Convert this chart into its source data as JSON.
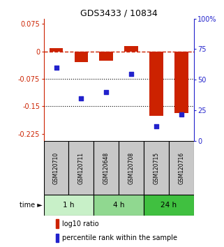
{
  "title": "GDS3433 / 10834",
  "samples": [
    "GSM120710",
    "GSM120711",
    "GSM120648",
    "GSM120708",
    "GSM120715",
    "GSM120716"
  ],
  "log10_ratio": [
    0.01,
    -0.03,
    -0.025,
    0.015,
    -0.175,
    -0.168
  ],
  "percentile_rank": [
    60,
    35,
    40,
    55,
    12,
    22
  ],
  "time_groups": [
    {
      "label": "1 h",
      "start": 0,
      "end": 2,
      "color": "#c8f0c8"
    },
    {
      "label": "4 h",
      "start": 2,
      "end": 4,
      "color": "#90d890"
    },
    {
      "label": "24 h",
      "start": 4,
      "end": 6,
      "color": "#40c040"
    }
  ],
  "ylim_left": [
    -0.245,
    0.09
  ],
  "ylim_right": [
    0,
    100
  ],
  "yticks_left": [
    0.075,
    0,
    -0.075,
    -0.15,
    -0.225
  ],
  "yticks_right": [
    100,
    75,
    50,
    25,
    0
  ],
  "hlines": [
    -0.075,
    -0.15
  ],
  "bar_color": "#cc2200",
  "dot_color": "#2222cc",
  "dashed_color": "#cc2200",
  "bar_width": 0.55,
  "legend_items": [
    "log10 ratio",
    "percentile rank within the sample"
  ],
  "legend_colors": [
    "#cc2200",
    "#2222cc"
  ],
  "bg_color": "#ffffff",
  "label_box_color": "#c8c8c8"
}
